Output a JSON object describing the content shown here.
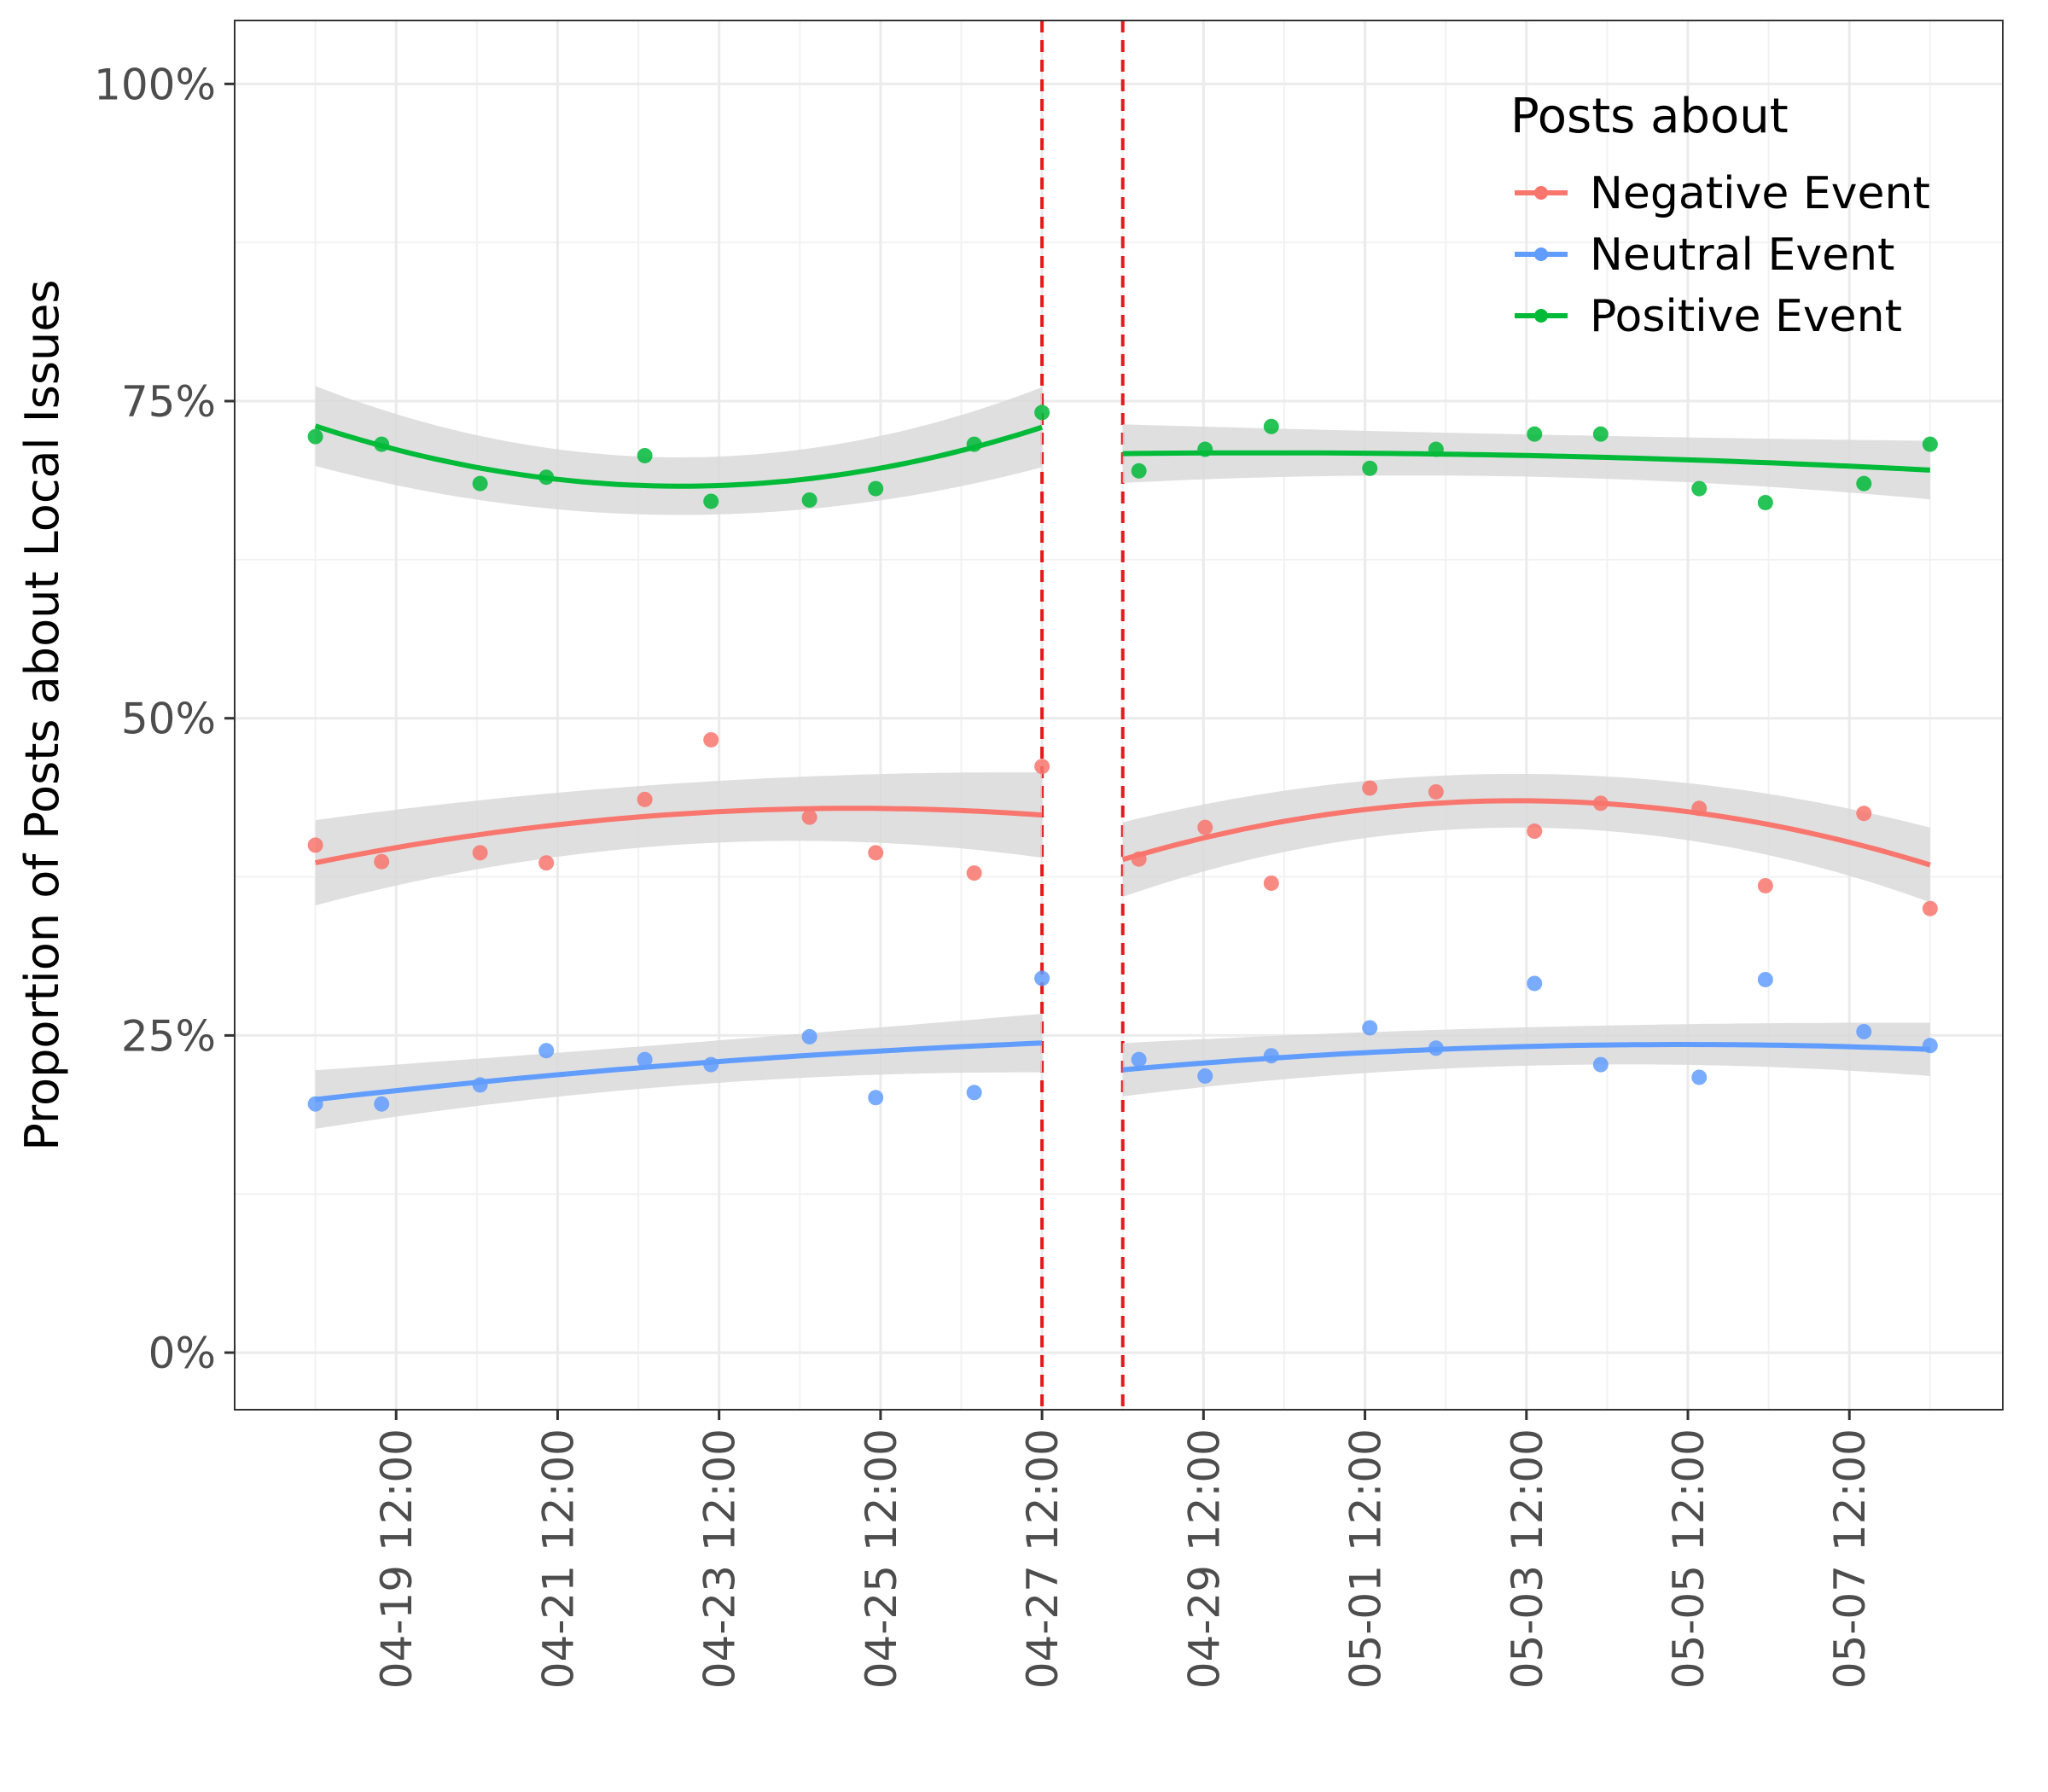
{
  "chart_data": {
    "type": "scatter",
    "title": "",
    "xlabel": "",
    "ylabel": "Proportion of Posts about Local Issues",
    "ylim": [
      -0.045,
      1.05
    ],
    "xlim": [
      -1.0,
      20.9
    ],
    "grid": true,
    "x_unit": "days since 04-18 12:00",
    "x_ticks": [
      {
        "x": 1,
        "label": "04-19 12:00"
      },
      {
        "x": 3,
        "label": "04-21 12:00"
      },
      {
        "x": 5,
        "label": "04-23 12:00"
      },
      {
        "x": 7,
        "label": "04-25 12:00"
      },
      {
        "x": 9,
        "label": "04-27 12:00"
      },
      {
        "x": 11,
        "label": "04-29 12:00"
      },
      {
        "x": 13,
        "label": "05-01 12:00"
      },
      {
        "x": 15,
        "label": "05-03 12:00"
      },
      {
        "x": 17,
        "label": "05-05 12:00"
      },
      {
        "x": 19,
        "label": "05-07 12:00"
      }
    ],
    "y_ticks": [
      {
        "y": 0,
        "label": "0%"
      },
      {
        "y": 0.25,
        "label": "25%"
      },
      {
        "y": 0.5,
        "label": "50%"
      },
      {
        "y": 0.75,
        "label": "75%"
      },
      {
        "y": 1.0,
        "label": "100%"
      }
    ],
    "vlines": [
      9,
      10
    ],
    "vline_color": "#e41a1c",
    "band_color": "#d9d9d9",
    "segments": [
      [
        0,
        9
      ],
      [
        10,
        20
      ]
    ],
    "legend": {
      "title": "Posts about",
      "position": "top-right"
    },
    "series": [
      {
        "name": "Negative Event",
        "color": "#f8766d",
        "points": [
          [
            0,
            0.4
          ],
          [
            0.82,
            0.387
          ],
          [
            2.04,
            0.394
          ],
          [
            2.86,
            0.386
          ],
          [
            4.08,
            0.436
          ],
          [
            4.9,
            0.483
          ],
          [
            6.12,
            0.422
          ],
          [
            6.94,
            0.394
          ],
          [
            8.16,
            0.378
          ],
          [
            9,
            0.462
          ],
          [
            10.2,
            0.389
          ],
          [
            11.02,
            0.414
          ],
          [
            11.84,
            0.37
          ],
          [
            13.06,
            0.445
          ],
          [
            13.88,
            0.442
          ],
          [
            15.1,
            0.411
          ],
          [
            15.92,
            0.433
          ],
          [
            17.14,
            0.429
          ],
          [
            17.96,
            0.368
          ],
          [
            19.18,
            0.425
          ],
          [
            20,
            0.35
          ]
        ],
        "fits": [
          {
            "a": 0.3861,
            "b": 0.01289,
            "c": -0.0009676,
            "halfwidth": 0.032
          },
          {
            "a": 0.3886,
            "b": 0.01896,
            "c": -0.001938,
            "halfwidth": 0.028
          }
        ]
      },
      {
        "name": "Neutral Event",
        "color": "#619cff",
        "points": [
          [
            0,
            0.196
          ],
          [
            0.82,
            0.196
          ],
          [
            2.04,
            0.211
          ],
          [
            2.86,
            0.238
          ],
          [
            4.08,
            0.231
          ],
          [
            4.9,
            0.227
          ],
          [
            6.12,
            0.249
          ],
          [
            6.94,
            0.201
          ],
          [
            8.16,
            0.205
          ],
          [
            9,
            0.295
          ],
          [
            10.2,
            0.231
          ],
          [
            11.02,
            0.218
          ],
          [
            11.84,
            0.234
          ],
          [
            13.06,
            0.256
          ],
          [
            13.88,
            0.24
          ],
          [
            15.1,
            0.291
          ],
          [
            15.92,
            0.227
          ],
          [
            17.14,
            0.217
          ],
          [
            17.96,
            0.294
          ],
          [
            19.18,
            0.253
          ],
          [
            20,
            0.242
          ]
        ],
        "fits": [
          {
            "a": 0.1995,
            "b": 0.007278,
            "c": -0.0002593,
            "halfwidth": 0.022
          },
          {
            "a": 0.2229,
            "b": 0.005741,
            "c": -0.000413,
            "halfwidth": 0.02
          }
        ]
      },
      {
        "name": "Positive Event",
        "color": "#00ba38",
        "points": [
          [
            0,
            0.722
          ],
          [
            0.82,
            0.716
          ],
          [
            2.04,
            0.685
          ],
          [
            2.86,
            0.69
          ],
          [
            4.08,
            0.707
          ],
          [
            4.9,
            0.671
          ],
          [
            6.12,
            0.672
          ],
          [
            6.94,
            0.681
          ],
          [
            8.16,
            0.716
          ],
          [
            9,
            0.741
          ],
          [
            10.2,
            0.695
          ],
          [
            11.02,
            0.712
          ],
          [
            11.84,
            0.73
          ],
          [
            13.06,
            0.697
          ],
          [
            13.88,
            0.712
          ],
          [
            15.1,
            0.724
          ],
          [
            15.92,
            0.724
          ],
          [
            17.14,
            0.681
          ],
          [
            17.96,
            0.67
          ],
          [
            19.18,
            0.685
          ],
          [
            20,
            0.716
          ]
        ],
        "fits": [
          {
            "a": 0.7304,
            "b": -0.02098,
            "c": 0.002319,
            "halfwidth": 0.03
          },
          {
            "a": 0.7086,
            "b": 0.0007,
            "c": -0.0002,
            "halfwidth": 0.022
          }
        ]
      }
    ]
  }
}
